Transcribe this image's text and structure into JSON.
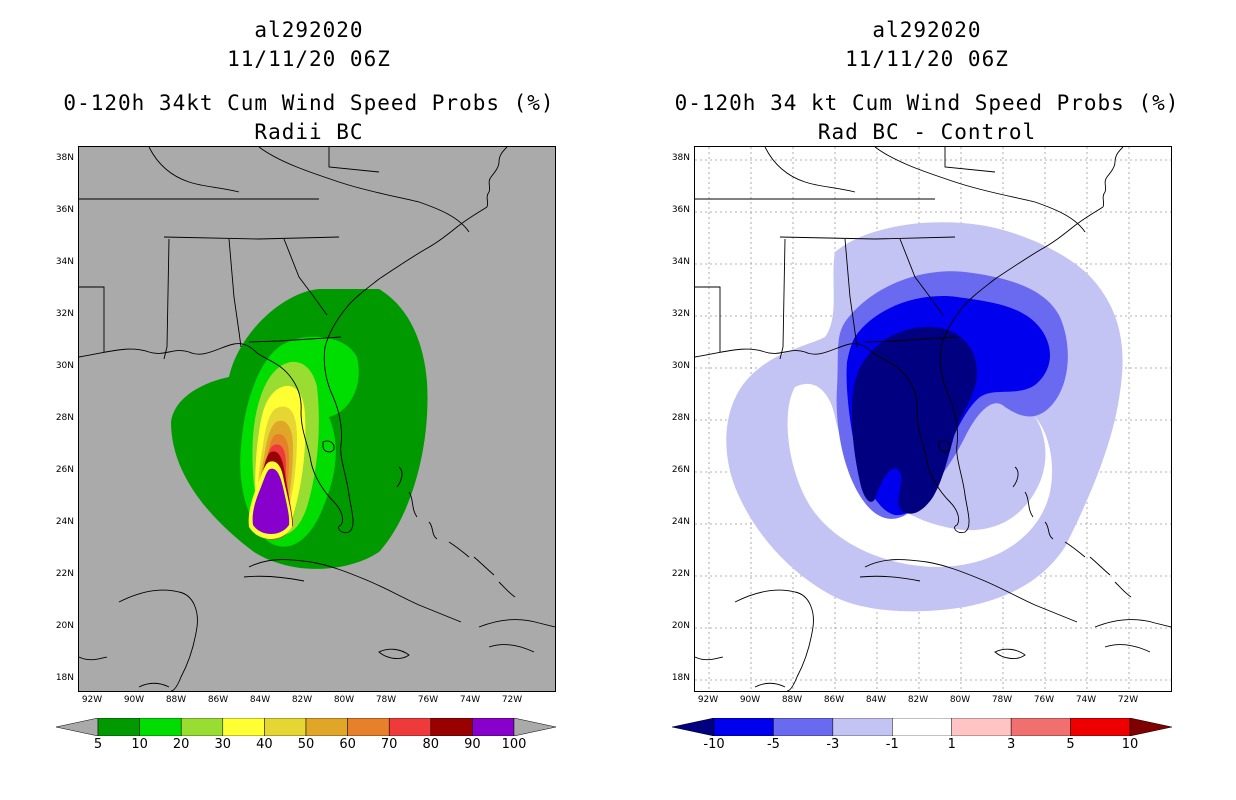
{
  "left_panel": {
    "storm_id": "al292020",
    "datetime": "11/11/20 06Z",
    "product": "0-120h 34kt Cum Wind Speed Probs (%)",
    "subtitle": "Radii BC",
    "colorbar": {
      "labels": [
        "5",
        "10",
        "20",
        "30",
        "40",
        "50",
        "60",
        "70",
        "80",
        "90",
        "100"
      ],
      "colors": [
        "#009900",
        "#00dd00",
        "#99dd33",
        "#ffff33",
        "#e6d633",
        "#e0a628",
        "#e6802a",
        "#ee3a3a",
        "#990000",
        "#8800cc"
      ],
      "under_color": "#aaaaaa",
      "over_color": "#aaaaaa"
    },
    "background_color": "#aaaaaa"
  },
  "right_panel": {
    "storm_id": "al292020",
    "datetime": "11/11/20 06Z",
    "product": "0-120h 34 kt Cum Wind Speed Probs (%)",
    "subtitle": "Rad BC - Control",
    "colorbar": {
      "labels": [
        "-10",
        "-5",
        "-3",
        "-1",
        "1",
        "3",
        "5",
        "10"
      ],
      "colors": [
        "#0000ee",
        "#6a6af0",
        "#c4c4f4",
        "#ffffff",
        "#ffc4c4",
        "#f07070",
        "#ee0000"
      ],
      "under_color": "#000080",
      "over_color": "#800000"
    },
    "background_color": "#ffffff"
  },
  "axes": {
    "lat_labels": [
      "38N",
      "36N",
      "34N",
      "32N",
      "30N",
      "28N",
      "26N",
      "24N",
      "22N",
      "20N",
      "18N"
    ],
    "lon_labels": [
      "92W",
      "90W",
      "88W",
      "86W",
      "84W",
      "82W",
      "80W",
      "78W",
      "76W",
      "74W",
      "72W"
    ],
    "lat_range": [
      17.6,
      38.5
    ],
    "lon_range": [
      -93.5,
      -71.0
    ]
  }
}
